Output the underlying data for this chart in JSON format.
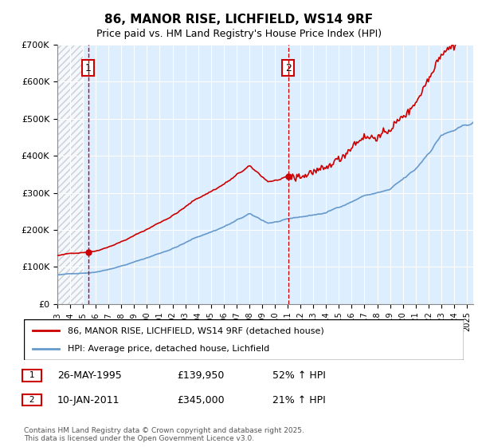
{
  "title": "86, MANOR RISE, LICHFIELD, WS14 9RF",
  "subtitle": "Price paid vs. HM Land Registry's House Price Index (HPI)",
  "ylabel": "",
  "ylim": [
    0,
    700000
  ],
  "yticks": [
    0,
    100000,
    200000,
    300000,
    400000,
    500000,
    600000,
    700000
  ],
  "ytick_labels": [
    "£0",
    "£100K",
    "£200K",
    "£300K",
    "£400K",
    "£500K",
    "£600K",
    "£700K"
  ],
  "xlim_start": 1993.0,
  "xlim_end": 2025.5,
  "marker1_x": 1995.4,
  "marker1_y": 139950,
  "marker1_label": "1",
  "marker1_date": "26-MAY-1995",
  "marker1_price": "£139,950",
  "marker1_hpi": "52% ↑ HPI",
  "marker2_x": 2011.03,
  "marker2_y": 345000,
  "marker2_label": "2",
  "marker2_date": "10-JAN-2011",
  "marker2_price": "£345,000",
  "marker2_hpi": "21% ↑ HPI",
  "red_color": "#cc0000",
  "blue_color": "#6699cc",
  "bg_hatch_color": "#dddddd",
  "plot_bg_color": "#ddeeff",
  "legend_label_red": "86, MANOR RISE, LICHFIELD, WS14 9RF (detached house)",
  "legend_label_blue": "HPI: Average price, detached house, Lichfield",
  "footer": "Contains HM Land Registry data © Crown copyright and database right 2025.\nThis data is licensed under the Open Government Licence v3.0.",
  "xtick_years": [
    1993,
    1994,
    1995,
    1996,
    1997,
    1998,
    1999,
    2000,
    2001,
    2002,
    2003,
    2004,
    2005,
    2006,
    2007,
    2008,
    2009,
    2010,
    2011,
    2012,
    2013,
    2014,
    2015,
    2016,
    2017,
    2018,
    2019,
    2020,
    2021,
    2022,
    2023,
    2024,
    2025
  ]
}
